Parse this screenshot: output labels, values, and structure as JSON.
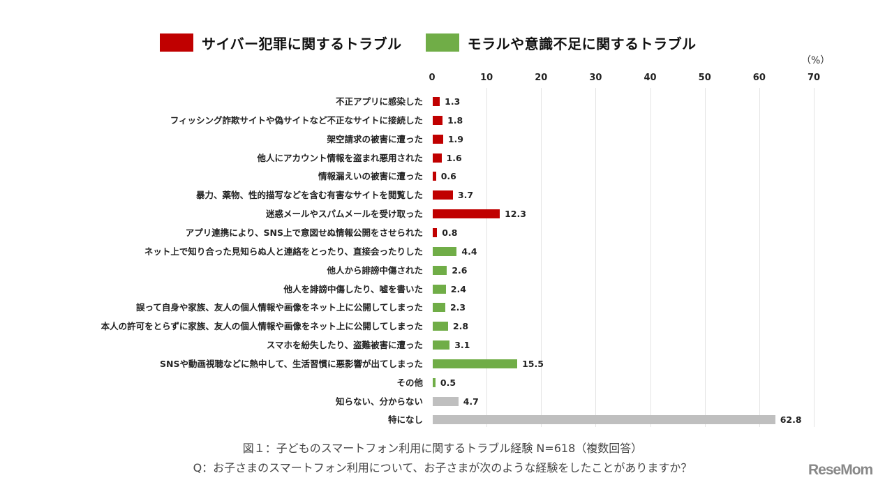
{
  "chart_data": {
    "type": "bar",
    "orientation": "horizontal",
    "title": "図１：子どものスマートフォン利用に関するトラブル経験 N=618（複数回答）",
    "subtitle": "Q：お子さまのスマートフォン利用について、お子さまが次のような経験をしたことがありますか？",
    "xlabel": "",
    "ylabel": "",
    "unit": "（%）",
    "xlim": [
      0,
      70
    ],
    "ticks": [
      0,
      10,
      20,
      30,
      40,
      50,
      60,
      70
    ],
    "grid": true,
    "legend_position": "top",
    "legend": [
      {
        "label": "サイバー犯罪に関するトラブル",
        "color": "#c00000"
      },
      {
        "label": "モラルや意識不足に関するトラブル",
        "color": "#70ad47"
      }
    ],
    "categories": [
      "不正アプリに感染した",
      "フィッシング詐欺サイトや偽サイトなど不正なサイトに接続した",
      "架空請求の被害に遭った",
      "他人にアカウント情報を盗まれ悪用された",
      "情報漏えいの被害に遭った",
      "暴力、薬物、性的描写などを含む有害なサイトを閲覧した",
      "迷惑メールやスパムメールを受け取った",
      "アプリ連携により、SNS上で意図せぬ情報公開をさせられた",
      "ネット上で知り合った見知らぬ人と連絡をとったり、直接会ったりした",
      "他人から誹謗中傷された",
      "他人を誹謗中傷したり、嘘を書いた",
      "誤って自身や家族、友人の個人情報や画像をネット上に公開してしまった",
      "本人の許可をとらずに家族、友人の個人情報や画像をネット上に公開してしまった",
      "スマホを紛失したり、盗難被害に遭った",
      "SNSや動画視聴などに熱中して、生活習慣に悪影響が出てしまった",
      "その他",
      "知らない、分からない",
      "特になし"
    ],
    "values": [
      1.3,
      1.8,
      1.9,
      1.6,
      0.6,
      3.7,
      12.3,
      0.8,
      4.4,
      2.6,
      2.4,
      2.3,
      2.8,
      3.1,
      15.5,
      0.5,
      4.7,
      62.8
    ],
    "groups": [
      "cyber",
      "cyber",
      "cyber",
      "cyber",
      "cyber",
      "cyber",
      "cyber",
      "cyber",
      "moral",
      "moral",
      "moral",
      "moral",
      "moral",
      "moral",
      "moral",
      "moral",
      "other",
      "other"
    ],
    "colors": {
      "cyber": "#c00000",
      "moral": "#70ad47",
      "other": "#bfbfbf"
    }
  },
  "watermark": "ReseMom"
}
